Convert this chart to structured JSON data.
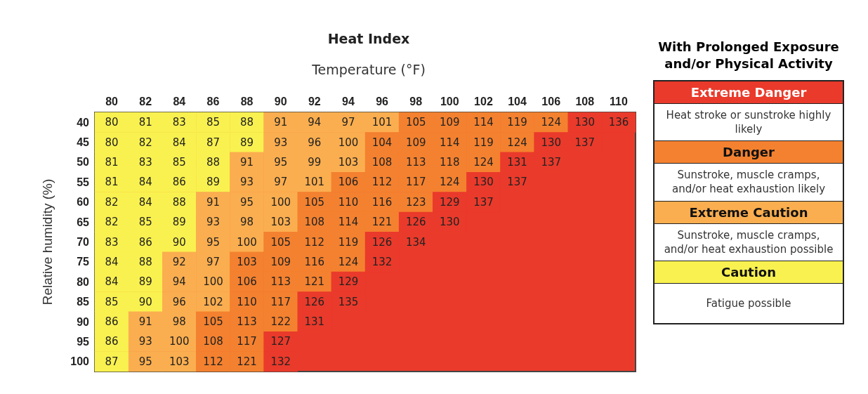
{
  "chart_data": [
    {
      "type": "heatmap",
      "title": "Heat Index",
      "subtitle": "Temperature (°F)",
      "ylabel": "Relative humidity (%)",
      "categories": [
        "80",
        "82",
        "84",
        "86",
        "88",
        "90",
        "92",
        "94",
        "96",
        "98",
        "100",
        "102",
        "104",
        "106",
        "108",
        "110"
      ],
      "y_categories": [
        "40",
        "45",
        "50",
        "55",
        "60",
        "65",
        "70",
        "75",
        "80",
        "85",
        "90",
        "95",
        "100"
      ],
      "cells": [
        [
          80,
          81,
          83,
          85,
          88,
          91,
          94,
          97,
          101,
          105,
          109,
          114,
          119,
          124,
          130,
          136
        ],
        [
          80,
          82,
          84,
          87,
          89,
          93,
          96,
          100,
          104,
          109,
          114,
          119,
          124,
          130,
          137,
          null
        ],
        [
          81,
          83,
          85,
          88,
          91,
          95,
          99,
          103,
          108,
          113,
          118,
          124,
          131,
          137,
          null,
          null
        ],
        [
          81,
          84,
          86,
          89,
          93,
          97,
          101,
          106,
          112,
          117,
          124,
          130,
          137,
          null,
          null,
          null
        ],
        [
          82,
          84,
          88,
          91,
          95,
          100,
          105,
          110,
          116,
          123,
          129,
          137,
          null,
          null,
          null,
          null
        ],
        [
          82,
          85,
          89,
          93,
          98,
          103,
          108,
          114,
          121,
          126,
          130,
          null,
          null,
          null,
          null,
          null
        ],
        [
          83,
          86,
          90,
          95,
          100,
          105,
          112,
          119,
          126,
          134,
          null,
          null,
          null,
          null,
          null,
          null
        ],
        [
          84,
          88,
          92,
          97,
          103,
          109,
          116,
          124,
          132,
          null,
          null,
          null,
          null,
          null,
          null,
          null
        ],
        [
          84,
          89,
          94,
          100,
          106,
          113,
          121,
          129,
          null,
          null,
          null,
          null,
          null,
          null,
          null,
          null
        ],
        [
          85,
          90,
          96,
          102,
          110,
          117,
          126,
          135,
          null,
          null,
          null,
          null,
          null,
          null,
          null,
          null
        ],
        [
          86,
          91,
          98,
          105,
          113,
          122,
          131,
          null,
          null,
          null,
          null,
          null,
          null,
          null,
          null,
          null
        ],
        [
          86,
          93,
          100,
          108,
          117,
          127,
          null,
          null,
          null,
          null,
          null,
          null,
          null,
          null,
          null,
          null
        ],
        [
          87,
          95,
          103,
          112,
          121,
          132,
          null,
          null,
          null,
          null,
          null,
          null,
          null,
          null,
          null,
          null
        ]
      ],
      "colors": [
        [
          "#f9f14f",
          "#f9f14f",
          "#f9f14f",
          "#f9f14f",
          "#f9f14f",
          "#fbae4f",
          "#fbae4f",
          "#fbae4f",
          "#fbae4f",
          "#f4812f",
          "#f4812f",
          "#f4812f",
          "#f4812f",
          "#f4812f",
          "#ea3a2b",
          "#ea3a2b"
        ],
        [
          "#f9f14f",
          "#f9f14f",
          "#f9f14f",
          "#f9f14f",
          "#f9f14f",
          "#fbae4f",
          "#fbae4f",
          "#fbae4f",
          "#f4812f",
          "#f4812f",
          "#f4812f",
          "#f4812f",
          "#f4812f",
          "#ea3a2b",
          "#ea3a2b",
          "#ea3a2b"
        ],
        [
          "#f9f14f",
          "#f9f14f",
          "#f9f14f",
          "#f9f14f",
          "#fbae4f",
          "#fbae4f",
          "#fbae4f",
          "#fbae4f",
          "#f4812f",
          "#f4812f",
          "#f4812f",
          "#f4812f",
          "#ea3a2b",
          "#ea3a2b",
          "#ea3a2b",
          "#ea3a2b"
        ],
        [
          "#f9f14f",
          "#f9f14f",
          "#f9f14f",
          "#f9f14f",
          "#fbae4f",
          "#fbae4f",
          "#fbae4f",
          "#f4812f",
          "#f4812f",
          "#f4812f",
          "#f4812f",
          "#ea3a2b",
          "#ea3a2b",
          "#ea3a2b",
          "#ea3a2b",
          "#ea3a2b"
        ],
        [
          "#f9f14f",
          "#f9f14f",
          "#f9f14f",
          "#fbae4f",
          "#fbae4f",
          "#fbae4f",
          "#f4812f",
          "#f4812f",
          "#f4812f",
          "#f4812f",
          "#ea3a2b",
          "#ea3a2b",
          "#ea3a2b",
          "#ea3a2b",
          "#ea3a2b",
          "#ea3a2b"
        ],
        [
          "#f9f14f",
          "#f9f14f",
          "#f9f14f",
          "#fbae4f",
          "#fbae4f",
          "#fbae4f",
          "#f4812f",
          "#f4812f",
          "#f4812f",
          "#ea3a2b",
          "#ea3a2b",
          "#ea3a2b",
          "#ea3a2b",
          "#ea3a2b",
          "#ea3a2b",
          "#ea3a2b"
        ],
        [
          "#f9f14f",
          "#f9f14f",
          "#f9f14f",
          "#fbae4f",
          "#fbae4f",
          "#f4812f",
          "#f4812f",
          "#f4812f",
          "#ea3a2b",
          "#ea3a2b",
          "#ea3a2b",
          "#ea3a2b",
          "#ea3a2b",
          "#ea3a2b",
          "#ea3a2b",
          "#ea3a2b"
        ],
        [
          "#f9f14f",
          "#f9f14f",
          "#fbae4f",
          "#fbae4f",
          "#f4812f",
          "#f4812f",
          "#f4812f",
          "#f4812f",
          "#ea3a2b",
          "#ea3a2b",
          "#ea3a2b",
          "#ea3a2b",
          "#ea3a2b",
          "#ea3a2b",
          "#ea3a2b",
          "#ea3a2b"
        ],
        [
          "#f9f14f",
          "#f9f14f",
          "#fbae4f",
          "#fbae4f",
          "#f4812f",
          "#f4812f",
          "#f4812f",
          "#ea3a2b",
          "#ea3a2b",
          "#ea3a2b",
          "#ea3a2b",
          "#ea3a2b",
          "#ea3a2b",
          "#ea3a2b",
          "#ea3a2b",
          "#ea3a2b"
        ],
        [
          "#f9f14f",
          "#f9f14f",
          "#fbae4f",
          "#fbae4f",
          "#f4812f",
          "#f4812f",
          "#ea3a2b",
          "#ea3a2b",
          "#ea3a2b",
          "#ea3a2b",
          "#ea3a2b",
          "#ea3a2b",
          "#ea3a2b",
          "#ea3a2b",
          "#ea3a2b",
          "#ea3a2b"
        ],
        [
          "#f9f14f",
          "#fbae4f",
          "#fbae4f",
          "#f4812f",
          "#f4812f",
          "#f4812f",
          "#ea3a2b",
          "#ea3a2b",
          "#ea3a2b",
          "#ea3a2b",
          "#ea3a2b",
          "#ea3a2b",
          "#ea3a2b",
          "#ea3a2b",
          "#ea3a2b",
          "#ea3a2b"
        ],
        [
          "#f9f14f",
          "#fbae4f",
          "#fbae4f",
          "#f4812f",
          "#f4812f",
          "#ea3a2b",
          "#ea3a2b",
          "#ea3a2b",
          "#ea3a2b",
          "#ea3a2b",
          "#ea3a2b",
          "#ea3a2b",
          "#ea3a2b",
          "#ea3a2b",
          "#ea3a2b",
          "#ea3a2b"
        ],
        [
          "#f9f14f",
          "#fbae4f",
          "#fbae4f",
          "#f4812f",
          "#f4812f",
          "#ea3a2b",
          "#ea3a2b",
          "#ea3a2b",
          "#ea3a2b",
          "#ea3a2b",
          "#ea3a2b",
          "#ea3a2b",
          "#ea3a2b",
          "#ea3a2b",
          "#ea3a2b",
          "#ea3a2b"
        ]
      ],
      "data_labels": true
    },
    {
      "type": "other",
      "title": "With Prolonged Exposure and/or Physical Activity",
      "categories": [
        "Extreme Danger",
        "Danger",
        "Extreme Caution",
        "Caution"
      ],
      "colors": [
        "#ea3a2b",
        "#f4812f",
        "#fbae4f",
        "#f9f14f"
      ],
      "annotations": [
        "Heat stroke or sunstroke highly likely",
        "Sunstroke, muscle cramps, and/or heat exhaustion likely",
        "Sunstroke, muscle cramps, and/or heat exhaustion possible",
        "Fatigue possible"
      ]
    }
  ]
}
